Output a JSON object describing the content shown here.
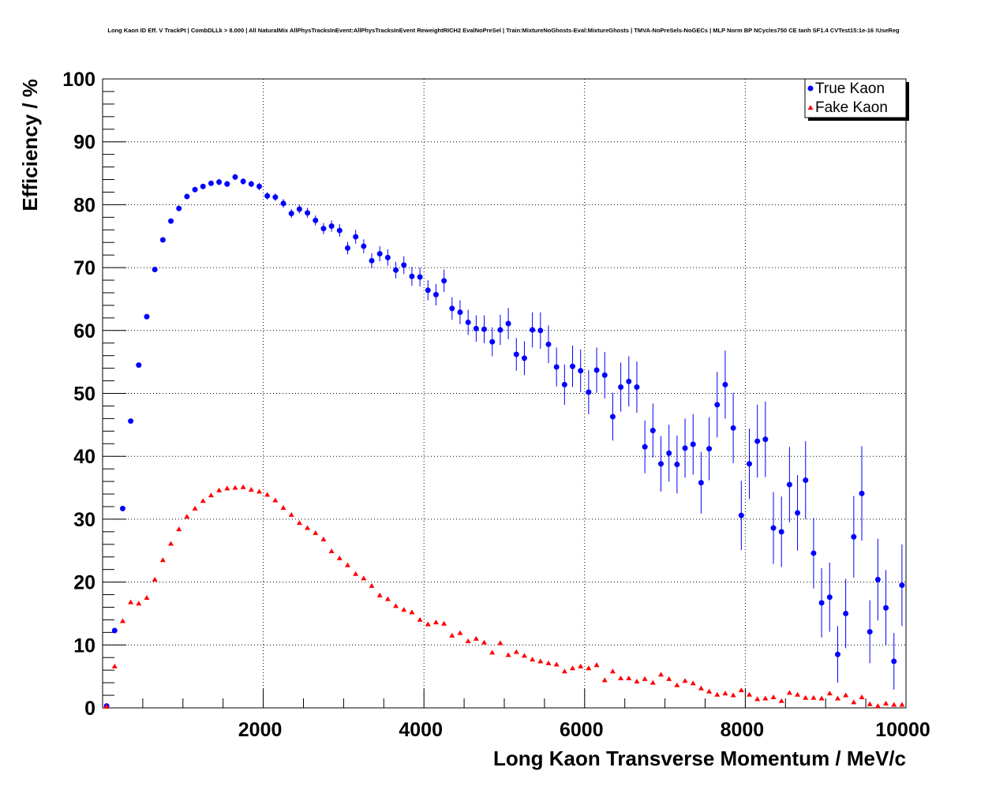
{
  "chart_data": {
    "type": "scatter",
    "title": "Long Kaon ID Eff. V TrackPt | CombDLLk > 8.000 | All NaturalMix AllPhysTracksInEvent:AllPhysTracksInEvent ReweightRICH2 EvalNoPreSel | Train:MixtureNoGhosts-Eval:MixtureGhosts | TMVA-NoPreSels-NoGECs | MLP Norm BP NCycles750 CE tanh SF1.4 CVTest15:1e-16 !UseReg",
    "xlabel": "Long Kaon Transverse Momentum / MeV/c",
    "ylabel": "Efficiency / %",
    "xlim": [
      0,
      10000
    ],
    "ylim": [
      0,
      100
    ],
    "bin_width": 100,
    "x_ticks": [
      "2000",
      "4000",
      "6000",
      "8000",
      "10000"
    ],
    "y_ticks": [
      "0",
      "10",
      "20",
      "30",
      "40",
      "50",
      "60",
      "70",
      "80",
      "90",
      "100"
    ],
    "grid": true,
    "legend_position": "top-right",
    "series": [
      {
        "name": "True Kaon",
        "color": "#0000ff",
        "marker": "circle",
        "values": [
          0.3,
          12.3,
          31.7,
          45.6,
          54.5,
          62.2,
          69.7,
          74.4,
          77.4,
          79.4,
          81.3,
          82.4,
          82.9,
          83.4,
          83.6,
          83.3,
          84.4,
          83.7,
          83.3,
          82.9,
          81.4,
          81.2,
          80.2,
          78.6,
          79.3,
          78.7,
          77.5,
          76.2,
          76.6,
          75.9,
          73.1,
          74.9,
          73.4,
          71.1,
          72.2,
          71.6,
          69.6,
          70.4,
          68.6,
          68.5,
          66.4,
          65.7,
          67.9,
          63.5,
          62.9,
          61.3,
          60.3,
          60.2,
          58.2,
          60.1,
          61.1,
          56.2,
          55.6,
          60.1,
          60.0,
          57.8,
          54.2,
          51.4,
          54.3,
          53.6,
          50.2,
          53.7,
          52.9,
          46.3,
          51.0,
          51.9,
          51.0,
          41.5,
          44.1,
          38.8,
          40.5,
          38.7,
          41.3,
          41.9,
          35.8,
          41.2,
          48.2,
          51.4,
          44.5,
          30.6,
          38.8,
          42.4,
          42.7,
          28.6,
          28.0,
          35.5,
          31.0,
          36.2,
          24.6,
          16.7,
          17.6,
          8.5,
          15.0,
          27.2,
          34.1,
          12.1,
          20.4,
          15.9,
          7.4,
          19.5
        ],
        "errors": [
          0.3,
          0.4,
          0.4,
          0.4,
          0.4,
          0.4,
          0.4,
          0.4,
          0.4,
          0.4,
          0.4,
          0.4,
          0.4,
          0.4,
          0.5,
          0.5,
          0.5,
          0.5,
          0.5,
          0.6,
          0.6,
          0.6,
          0.7,
          0.7,
          0.7,
          0.8,
          0.8,
          0.9,
          0.9,
          1.0,
          1.0,
          1.1,
          1.1,
          1.2,
          1.2,
          1.3,
          1.3,
          1.4,
          1.5,
          1.5,
          1.6,
          1.7,
          1.8,
          1.8,
          1.9,
          2.0,
          2.1,
          2.2,
          2.3,
          2.4,
          2.5,
          2.6,
          2.7,
          2.8,
          2.9,
          3.0,
          3.1,
          3.2,
          3.3,
          3.4,
          3.5,
          3.6,
          3.7,
          3.8,
          3.9,
          4.0,
          4.1,
          4.2,
          4.3,
          4.4,
          4.5,
          4.6,
          4.7,
          4.8,
          4.9,
          5.0,
          5.2,
          5.4,
          5.6,
          5.5,
          5.6,
          5.8,
          6.0,
          5.7,
          5.6,
          6.0,
          6.0,
          6.2,
          5.6,
          5.5,
          5.5,
          4.5,
          5.5,
          6.5,
          7.5,
          5.0,
          6.5,
          6.0,
          4.5,
          6.5
        ]
      },
      {
        "name": "Fake Kaon",
        "color": "#ff0000",
        "marker": "triangle",
        "values": [
          0.2,
          6.6,
          13.8,
          16.8,
          16.6,
          17.5,
          20.4,
          23.5,
          26.1,
          28.4,
          30.4,
          31.7,
          32.9,
          33.8,
          34.6,
          34.9,
          35.0,
          35.1,
          34.7,
          34.4,
          33.9,
          33.0,
          31.8,
          30.7,
          29.4,
          28.6,
          27.8,
          26.8,
          24.9,
          23.8,
          22.7,
          21.3,
          20.6,
          19.4,
          17.9,
          17.3,
          16.2,
          15.6,
          15.2,
          14.0,
          13.3,
          13.6,
          13.4,
          11.5,
          11.9,
          10.6,
          11.0,
          10.4,
          8.8,
          10.3,
          8.4,
          8.9,
          8.3,
          7.7,
          7.4,
          7.1,
          6.9,
          5.8,
          6.3,
          6.6,
          6.3,
          6.8,
          4.4,
          5.8,
          4.7,
          4.7,
          4.2,
          4.6,
          4.0,
          5.3,
          4.6,
          3.6,
          4.3,
          3.9,
          3.1,
          2.6,
          2.1,
          2.3,
          2.0,
          2.8,
          2.1,
          1.4,
          1.5,
          1.7,
          1.1,
          2.4,
          2.1,
          1.6,
          1.6,
          1.5,
          2.3,
          1.5,
          2.0,
          0.9,
          1.7,
          0.6,
          0.3,
          0.7,
          0.5,
          0.5
        ]
      }
    ]
  }
}
